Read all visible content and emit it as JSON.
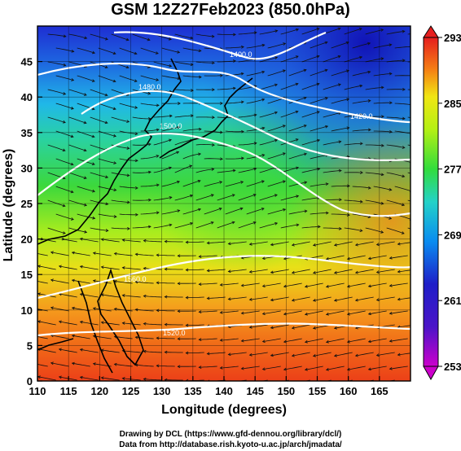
{
  "title": "GSM 12Z27Feb2023 (850.0hPa)",
  "credits": {
    "line1": "Drawing by DCL (https://www.gfd-dennou.org/library/dcl/)",
    "line2": "Data from http://database.rish.kyoto-u.ac.jp/arch/jmadata/"
  },
  "chart_data": {
    "type": "heatmap",
    "title": "GSM 12Z27Feb2023 (850.0hPa)",
    "xlabel": "Longitude (degrees)",
    "ylabel": "Latitude  (degrees)",
    "xlim": [
      110,
      170
    ],
    "ylim": [
      0,
      50
    ],
    "x_ticks": [
      "110",
      "115",
      "120",
      "125",
      "130",
      "135",
      "140",
      "145",
      "150",
      "155",
      "160",
      "165"
    ],
    "y_ticks": [
      "0",
      "5",
      "10",
      "15",
      "20",
      "25",
      "30",
      "35",
      "40",
      "45"
    ],
    "colorbar": {
      "min": 253,
      "max": 293,
      "labels": [
        "293",
        "285",
        "277",
        "269",
        "261",
        "253"
      ],
      "colors": [
        "#cc00cc",
        "#1e1ec8",
        "#0a8cf0",
        "#23d2c8",
        "#32dc3c",
        "#b4f014",
        "#f0e614",
        "#f58214",
        "#e61e1e"
      ]
    },
    "contour_labels": [
      "1400.0",
      "1480.0",
      "1420.0",
      "1500.0",
      "1560.0",
      "1520.0"
    ],
    "field": "temperature",
    "overlays": [
      "geopotential height contours",
      "streamlines"
    ]
  }
}
